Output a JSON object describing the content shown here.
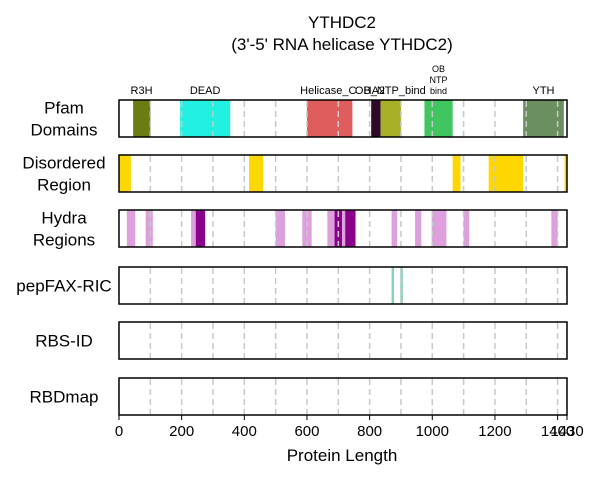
{
  "chart_data": {
    "type": "bar",
    "title": "YTHDC2",
    "subtitle": "(3'-5' RNA helicase YTHDC2)",
    "xlabel": "Protein Length",
    "xlim": [
      0,
      1430
    ],
    "xticks": [
      0,
      200,
      400,
      600,
      800,
      1000,
      1200,
      1400,
      1430
    ],
    "xtick_labels": [
      "0",
      "200",
      "400",
      "600",
      "800",
      "1000",
      "1200",
      "1400",
      "1430"
    ],
    "gridlines": [
      100,
      200,
      300,
      400,
      500,
      600,
      700,
      800,
      900,
      1000,
      1100,
      1200,
      1300,
      1400
    ],
    "rows": [
      {
        "label_lines": [
          "Pfam",
          "Domains"
        ],
        "segments": [
          {
            "start": 45,
            "end": 100,
            "color": "#6b7d12",
            "name": "R3H"
          },
          {
            "start": 195,
            "end": 355,
            "color": "#22f0e0",
            "name": "DEAD"
          },
          {
            "start": 600,
            "end": 745,
            "color": "#e05d5d",
            "name": "Helicase_C"
          },
          {
            "start": 805,
            "end": 835,
            "color": "#2d0a26",
            "name": "HA2"
          },
          {
            "start": 835,
            "end": 900,
            "color": "#a8b026",
            "name": "OB_NTP_bind"
          },
          {
            "start": 975,
            "end": 1065,
            "color": "#40c560",
            "name": "OB NTP bind"
          },
          {
            "start": 1290,
            "end": 1420,
            "color": "#6b8f5f",
            "name": "YTH"
          }
        ],
        "labels": [
          {
            "text": "R3H",
            "x": 72
          },
          {
            "text": "DEAD",
            "x": 275
          },
          {
            "text": "Helicase_C",
            "x": 668
          },
          {
            "text": "HA2",
            "x": 815
          },
          {
            "text": "OB_NTP_bind",
            "x": 866
          },
          {
            "text": "YTH",
            "x": 1355
          }
        ],
        "stacked_label": {
          "lines": [
            "OB",
            "NTP",
            "bind"
          ],
          "x": 1020
        }
      },
      {
        "label_lines": [
          "Disordered",
          "Region"
        ],
        "segments": [
          {
            "start": 0,
            "end": 38,
            "color": "#ffd700"
          },
          {
            "start": 415,
            "end": 460,
            "color": "#ffd700"
          },
          {
            "start": 1065,
            "end": 1090,
            "color": "#ffd700"
          },
          {
            "start": 1180,
            "end": 1290,
            "color": "#ffd700"
          },
          {
            "start": 1422,
            "end": 1430,
            "color": "#ffd700"
          }
        ]
      },
      {
        "label_lines": [
          "Hydra",
          "Regions"
        ],
        "segments": [
          {
            "start": 25,
            "end": 52,
            "color": "#dda0dd"
          },
          {
            "start": 85,
            "end": 108,
            "color": "#dda0dd"
          },
          {
            "start": 230,
            "end": 245,
            "color": "#dda0dd"
          },
          {
            "start": 245,
            "end": 275,
            "color": "#8b008b"
          },
          {
            "start": 500,
            "end": 530,
            "color": "#dda0dd"
          },
          {
            "start": 585,
            "end": 615,
            "color": "#dda0dd"
          },
          {
            "start": 665,
            "end": 688,
            "color": "#dda0dd"
          },
          {
            "start": 688,
            "end": 712,
            "color": "#8b008b"
          },
          {
            "start": 712,
            "end": 722,
            "color": "#dda0dd"
          },
          {
            "start": 722,
            "end": 755,
            "color": "#8b008b"
          },
          {
            "start": 870,
            "end": 888,
            "color": "#dda0dd"
          },
          {
            "start": 945,
            "end": 965,
            "color": "#dda0dd"
          },
          {
            "start": 998,
            "end": 1045,
            "color": "#dda0dd"
          },
          {
            "start": 1100,
            "end": 1118,
            "color": "#dda0dd"
          },
          {
            "start": 1380,
            "end": 1400,
            "color": "#dda0dd"
          }
        ]
      },
      {
        "label_lines": [
          "pepFAX-RIC"
        ],
        "segments": [
          {
            "start": 870,
            "end": 878,
            "color": "#88d0b8"
          },
          {
            "start": 898,
            "end": 906,
            "color": "#88d0b8"
          }
        ]
      },
      {
        "label_lines": [
          "RBS-ID"
        ],
        "segments": []
      },
      {
        "label_lines": [
          "RBDmap"
        ],
        "segments": []
      }
    ]
  }
}
